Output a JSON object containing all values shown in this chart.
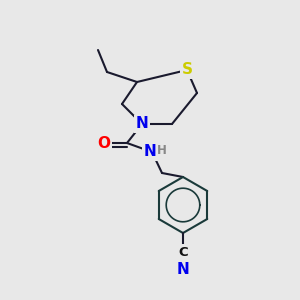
{
  "bg_color": "#e8e8e8",
  "atom_colors": {
    "C": "#000000",
    "N": "#0000ee",
    "O": "#ff0000",
    "S": "#cccc00",
    "H": "#888888"
  },
  "bond_color": "#1a1a2e",
  "bond_width": 1.5,
  "ring_bond_color": "#1a3a3a"
}
